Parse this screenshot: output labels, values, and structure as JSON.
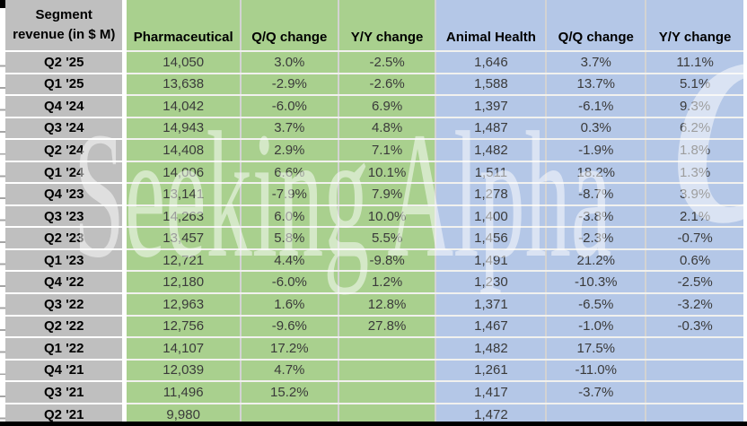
{
  "header": {
    "corner_line1": "Segment",
    "corner_line2": "revenue (in $ M)"
  },
  "watermark": {
    "text": "Seeking Alpha",
    "alpha_glyph": "α"
  },
  "colors": {
    "pharma_bg": "#a9d08e",
    "animal_bg": "#b4c7e7",
    "label_bg": "#bfbfbf",
    "separator": "#ffffff",
    "data_text": "#3a3a3a",
    "header_text": "#000000"
  },
  "chart_data": {
    "type": "table",
    "title": "Segment revenue (in $ M)",
    "columns": [
      "Segment revenue (in $ M)",
      "Pharmaceutical",
      "Q/Q change",
      "Y/Y change",
      "Animal Health",
      "Q/Q change",
      "Y/Y change"
    ],
    "rows": [
      [
        "Q2 '25",
        "14,050",
        "3.0%",
        "-2.5%",
        "1,646",
        "3.7%",
        "11.1%"
      ],
      [
        "Q1 '25",
        "13,638",
        "-2.9%",
        "-2.6%",
        "1,588",
        "13.7%",
        "5.1%"
      ],
      [
        "Q4 '24",
        "14,042",
        "-6.0%",
        "6.9%",
        "1,397",
        "-6.1%",
        "9.3%"
      ],
      [
        "Q3 '24",
        "14,943",
        "3.7%",
        "4.8%",
        "1,487",
        "0.3%",
        "6.2%"
      ],
      [
        "Q2 '24",
        "14,408",
        "2.9%",
        "7.1%",
        "1,482",
        "-1.9%",
        "1.8%"
      ],
      [
        "Q1 '24",
        "14,006",
        "6.6%",
        "10.1%",
        "1,511",
        "18.2%",
        "1.3%"
      ],
      [
        "Q4 '23",
        "13,141",
        "-7.9%",
        "7.9%",
        "1,278",
        "-8.7%",
        "3.9%"
      ],
      [
        "Q3 '23",
        "14,263",
        "6.0%",
        "10.0%",
        "1,400",
        "-3.8%",
        "2.1%"
      ],
      [
        "Q2 '23",
        "13,457",
        "5.8%",
        "5.5%",
        "1,456",
        "-2.3%",
        "-0.7%"
      ],
      [
        "Q1 '23",
        "12,721",
        "4.4%",
        "-9.8%",
        "1,491",
        "21.2%",
        "0.6%"
      ],
      [
        "Q4 '22",
        "12,180",
        "-6.0%",
        "1.2%",
        "1,230",
        "-10.3%",
        "-2.5%"
      ],
      [
        "Q3 '22",
        "12,963",
        "1.6%",
        "12.8%",
        "1,371",
        "-6.5%",
        "-3.2%"
      ],
      [
        "Q2 '22",
        "12,756",
        "-9.6%",
        "27.8%",
        "1,467",
        "-1.0%",
        "-0.3%"
      ],
      [
        "Q1 '22",
        "14,107",
        "17.2%",
        "",
        "1,482",
        "17.5%",
        ""
      ],
      [
        "Q4 '21",
        "12,039",
        "4.7%",
        "",
        "1,261",
        "-11.0%",
        ""
      ],
      [
        "Q3 '21",
        "11,496",
        "15.2%",
        "",
        "1,417",
        "-3.7%",
        ""
      ],
      [
        "Q2 '21",
        "9,980",
        "",
        "",
        "1,472",
        "",
        ""
      ]
    ]
  }
}
